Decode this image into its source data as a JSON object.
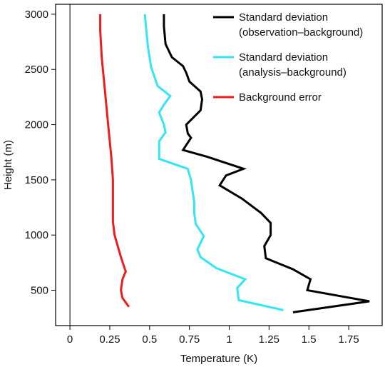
{
  "chart_data": {
    "type": "line",
    "xlabel": "Temperature (K)",
    "ylabel": "Height (m)",
    "xlim": [
      -0.09,
      1.96
    ],
    "ylim": [
      180,
      3090
    ],
    "xticks": [
      0,
      0.25,
      0.5,
      0.75,
      1,
      1.25,
      1.5,
      1.75
    ],
    "xtick_labels": [
      "0",
      "0.25",
      "0.5",
      "0.75",
      "1",
      "1.25",
      "1.5",
      "1.75"
    ],
    "yticks": [
      500,
      1000,
      1500,
      2000,
      2500,
      3000
    ],
    "ytick_labels": [
      "500",
      "1000",
      "1500",
      "2000",
      "2500",
      "3000"
    ],
    "grid": false,
    "vline_at_x": 0,
    "legend": {
      "position": "top-right",
      "entries": [
        {
          "lines": [
            "Standard deviation",
            "(observation–background)"
          ],
          "color": "#000000"
        },
        {
          "lines": [
            "Standard deviation",
            "(analysis–background)"
          ],
          "color": "#33e6f2"
        },
        {
          "lines": [
            "Background error"
          ],
          "color": "#ee1c1c"
        }
      ]
    },
    "series": [
      {
        "name": "Standard deviation (observation–background)",
        "color": "#000000",
        "points": [
          [
            1.4,
            300
          ],
          [
            1.88,
            400
          ],
          [
            1.49,
            500
          ],
          [
            1.51,
            600
          ],
          [
            1.4,
            690
          ],
          [
            1.23,
            790
          ],
          [
            1.22,
            900
          ],
          [
            1.26,
            1000
          ],
          [
            1.26,
            1110
          ],
          [
            1.2,
            1200
          ],
          [
            1.08,
            1330
          ],
          [
            0.94,
            1450
          ],
          [
            0.98,
            1540
          ],
          [
            1.09,
            1600
          ],
          [
            0.86,
            1710
          ],
          [
            0.71,
            1770
          ],
          [
            0.76,
            1880
          ],
          [
            0.74,
            1920
          ],
          [
            0.73,
            2000
          ],
          [
            0.82,
            2130
          ],
          [
            0.83,
            2230
          ],
          [
            0.82,
            2300
          ],
          [
            0.75,
            2390
          ],
          [
            0.73,
            2470
          ],
          [
            0.71,
            2530
          ],
          [
            0.64,
            2610
          ],
          [
            0.6,
            2730
          ],
          [
            0.59,
            2890
          ],
          [
            0.59,
            3000
          ]
        ]
      },
      {
        "name": "Standard deviation (analysis–background)",
        "color": "#33e6f2",
        "points": [
          [
            1.34,
            320
          ],
          [
            1.06,
            410
          ],
          [
            1.05,
            520
          ],
          [
            1.1,
            600
          ],
          [
            0.92,
            700
          ],
          [
            0.82,
            800
          ],
          [
            0.8,
            870
          ],
          [
            0.84,
            990
          ],
          [
            0.79,
            1100
          ],
          [
            0.78,
            1200
          ],
          [
            0.78,
            1300
          ],
          [
            0.77,
            1400
          ],
          [
            0.76,
            1500
          ],
          [
            0.74,
            1600
          ],
          [
            0.56,
            1690
          ],
          [
            0.56,
            1850
          ],
          [
            0.6,
            1930
          ],
          [
            0.59,
            2000
          ],
          [
            0.56,
            2110
          ],
          [
            0.59,
            2180
          ],
          [
            0.63,
            2260
          ],
          [
            0.55,
            2350
          ],
          [
            0.51,
            2520
          ],
          [
            0.49,
            2700
          ],
          [
            0.48,
            2850
          ],
          [
            0.47,
            3000
          ]
        ]
      },
      {
        "name": "Background error",
        "color": "#ee1c1c",
        "points": [
          [
            0.37,
            350
          ],
          [
            0.33,
            430
          ],
          [
            0.32,
            500
          ],
          [
            0.33,
            600
          ],
          [
            0.35,
            670
          ],
          [
            0.32,
            800
          ],
          [
            0.28,
            1000
          ],
          [
            0.27,
            1120
          ],
          [
            0.27,
            1250
          ],
          [
            0.27,
            1500
          ],
          [
            0.26,
            1700
          ],
          [
            0.24,
            2000
          ],
          [
            0.22,
            2300
          ],
          [
            0.2,
            2600
          ],
          [
            0.19,
            2850
          ],
          [
            0.19,
            3000
          ]
        ]
      }
    ]
  }
}
